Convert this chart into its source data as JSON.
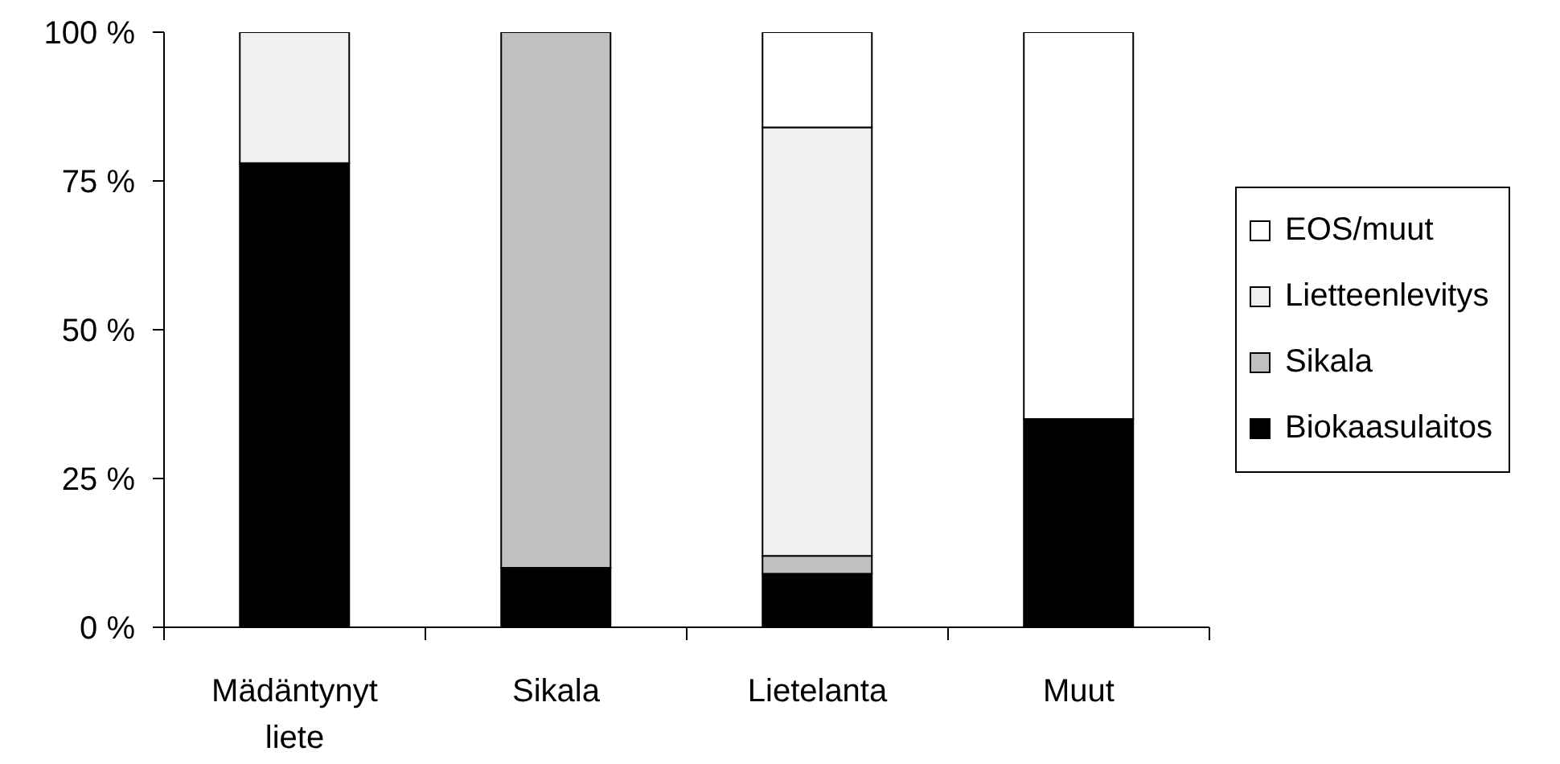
{
  "chart_data": {
    "type": "bar",
    "stacked": true,
    "categories": [
      "Mädäntynyt liete",
      "Sikala",
      "Lietelanta",
      "Muut"
    ],
    "series": [
      {
        "name": "Biokaasulaitos",
        "color": "#000000",
        "values": [
          78,
          10,
          9,
          35
        ]
      },
      {
        "name": "Sikala",
        "color": "#c0c0c0",
        "values": [
          0,
          90,
          3,
          0
        ]
      },
      {
        "name": "Lietteenlevitys",
        "color": "#f0f0f0",
        "values": [
          22,
          0,
          72,
          0
        ]
      },
      {
        "name": "EOS/muut",
        "color": "#ffffff",
        "values": [
          0,
          0,
          16,
          65
        ]
      }
    ],
    "ylim": [
      0,
      100
    ],
    "yticks": [
      {
        "value": 0,
        "label": "0 %"
      },
      {
        "value": 25,
        "label": "25 %"
      },
      {
        "value": 50,
        "label": "50 %"
      },
      {
        "value": 75,
        "label": "75 %"
      },
      {
        "value": 100,
        "label": "100 %"
      }
    ],
    "legend": "right"
  }
}
